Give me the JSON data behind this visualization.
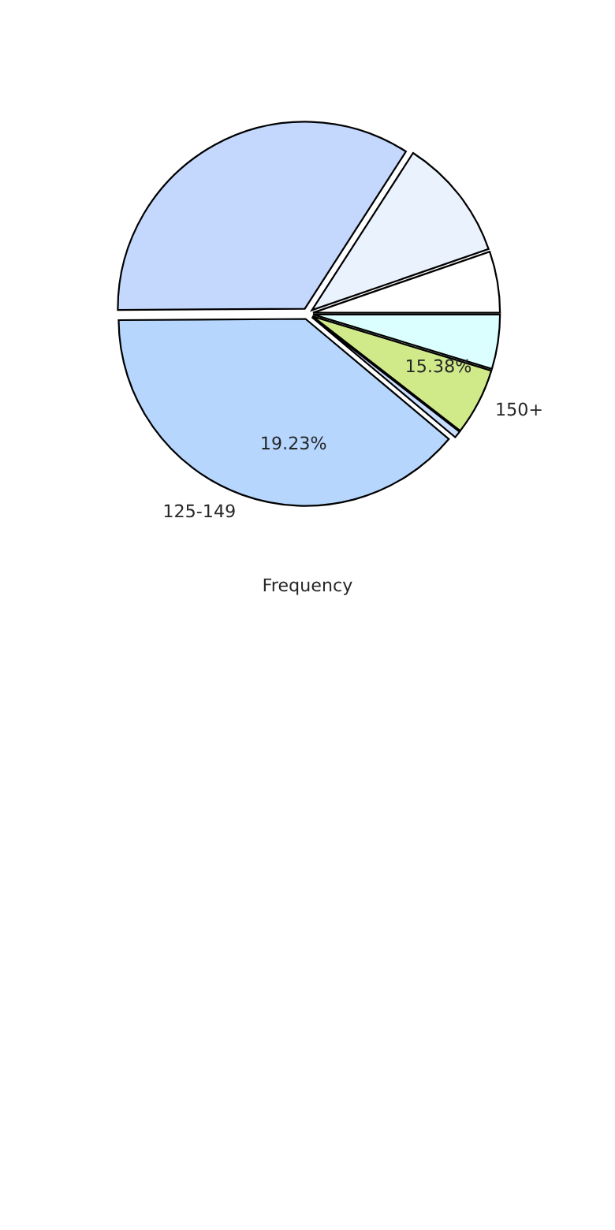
{
  "chart_data": {
    "type": "pie",
    "categories": [
      null,
      null,
      null,
      "125-149",
      null,
      "150+",
      null
    ],
    "values": [
      5.3,
      10.6,
      34.2,
      38.8,
      0.6,
      5.8,
      4.7
    ],
    "colors": [
      "#ffffff",
      "#eaf2fe",
      "#c4d8fe",
      "#b6d6fe",
      "#c8dcfe",
      "#d0ea8a",
      "#dbfefe"
    ],
    "xlabel": "Frequency",
    "annotations": [
      "15.38%",
      "19.23%"
    ]
  }
}
